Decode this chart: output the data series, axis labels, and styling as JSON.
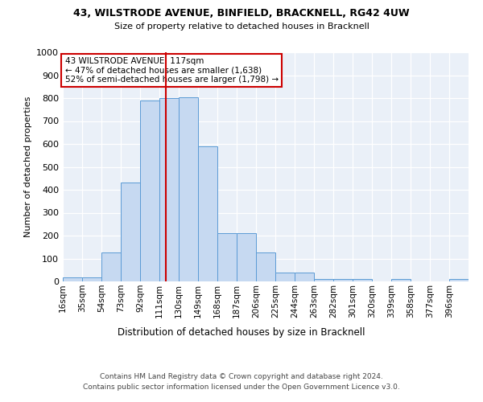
{
  "title1": "43, WILSTRODE AVENUE, BINFIELD, BRACKNELL, RG42 4UW",
  "title2": "Size of property relative to detached houses in Bracknell",
  "xlabel": "Distribution of detached houses by size in Bracknell",
  "ylabel": "Number of detached properties",
  "categories": [
    "16sqm",
    "35sqm",
    "54sqm",
    "73sqm",
    "92sqm",
    "111sqm",
    "130sqm",
    "149sqm",
    "168sqm",
    "187sqm",
    "206sqm",
    "225sqm",
    "244sqm",
    "263sqm",
    "282sqm",
    "301sqm",
    "320sqm",
    "339sqm",
    "358sqm",
    "377sqm",
    "396sqm"
  ],
  "bin_starts": [
    16,
    35,
    54,
    73,
    92,
    111,
    130,
    149,
    168,
    187,
    206,
    225,
    244,
    263,
    282,
    301,
    320,
    339,
    358,
    377,
    396
  ],
  "bin_width": 19,
  "values": [
    18,
    18,
    125,
    430,
    790,
    800,
    805,
    590,
    210,
    210,
    125,
    40,
    40,
    12,
    12,
    12,
    0,
    12,
    0,
    0,
    10
  ],
  "bar_color": "#c6d9f1",
  "bar_edge_color": "#5b9bd5",
  "property_line_x": 117,
  "property_line_color": "#cc0000",
  "annotation_text": "43 WILSTRODE AVENUE: 117sqm\n← 47% of detached houses are smaller (1,638)\n52% of semi-detached houses are larger (1,798) →",
  "annotation_box_color": "#ffffff",
  "annotation_box_edge_color": "#cc0000",
  "ylim": [
    0,
    1000
  ],
  "yticks": [
    0,
    100,
    200,
    300,
    400,
    500,
    600,
    700,
    800,
    900,
    1000
  ],
  "bg_color": "#eaf0f8",
  "footer_line1": "Contains HM Land Registry data © Crown copyright and database right 2024.",
  "footer_line2": "Contains public sector information licensed under the Open Government Licence v3.0."
}
